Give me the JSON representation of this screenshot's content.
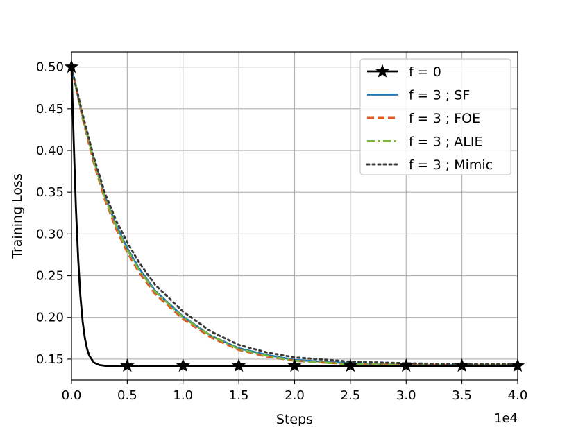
{
  "chart_data": {
    "type": "line",
    "title": "",
    "xlabel": "Steps",
    "ylabel": "Training Loss",
    "x_offset_label": "1e4",
    "xlim": [
      0,
      4.0
    ],
    "ylim": [
      0.125,
      0.518
    ],
    "x_ticks": [
      "0.0",
      "0.5",
      "1.0",
      "1.5",
      "2.0",
      "2.5",
      "3.0",
      "3.5",
      "4.0"
    ],
    "y_ticks": [
      "0.15",
      "0.20",
      "0.25",
      "0.30",
      "0.35",
      "0.40",
      "0.45",
      "0.50"
    ],
    "grid": true,
    "legend_position": "top-right",
    "series": [
      {
        "name": "f = 0",
        "color": "#000000",
        "style": "solid-star",
        "x": [
          0,
          0.02,
          0.04,
          0.06,
          0.08,
          0.1,
          0.12,
          0.14,
          0.16,
          0.2,
          0.25,
          0.3,
          0.5,
          1.0,
          1.5,
          2.0,
          2.5,
          3.0,
          3.5,
          4.0
        ],
        "y": [
          0.5,
          0.41,
          0.33,
          0.27,
          0.225,
          0.195,
          0.175,
          0.162,
          0.154,
          0.146,
          0.143,
          0.142,
          0.142,
          0.142,
          0.142,
          0.142,
          0.142,
          0.142,
          0.142,
          0.142
        ],
        "markers_x": [
          0,
          0.5,
          1.0,
          1.5,
          2.0,
          2.5,
          3.0,
          3.5,
          4.0
        ],
        "markers_y": [
          0.5,
          0.142,
          0.142,
          0.142,
          0.142,
          0.142,
          0.142,
          0.142,
          0.142
        ]
      },
      {
        "name": "f = 3 ; SF",
        "color": "#1f77b4",
        "style": "solid",
        "x": [
          0,
          0.1,
          0.2,
          0.3,
          0.4,
          0.5,
          0.6,
          0.75,
          1.0,
          1.25,
          1.5,
          1.75,
          2.0,
          2.5,
          3.0,
          3.5,
          4.0
        ],
        "y": [
          0.5,
          0.44,
          0.389,
          0.345,
          0.311,
          0.283,
          0.26,
          0.232,
          0.201,
          0.178,
          0.163,
          0.155,
          0.149,
          0.145,
          0.143,
          0.143,
          0.143
        ],
        "markers_x": [],
        "markers_y": []
      },
      {
        "name": "f = 3 ; FOE",
        "color": "#e05a1f",
        "style": "dashed",
        "x": [
          0,
          0.1,
          0.2,
          0.3,
          0.4,
          0.5,
          0.6,
          0.75,
          1.0,
          1.25,
          1.5,
          1.75,
          2.0,
          2.5,
          3.0,
          3.5,
          4.0
        ],
        "y": [
          0.5,
          0.438,
          0.385,
          0.341,
          0.306,
          0.278,
          0.255,
          0.228,
          0.198,
          0.176,
          0.161,
          0.153,
          0.148,
          0.144,
          0.143,
          0.143,
          0.143
        ],
        "markers_x": [],
        "markers_y": []
      },
      {
        "name": "f = 3 ; ALIE",
        "color": "#7cb342",
        "style": "dashdot",
        "x": [
          0,
          0.1,
          0.2,
          0.3,
          0.4,
          0.5,
          0.6,
          0.75,
          1.0,
          1.25,
          1.5,
          1.75,
          2.0,
          2.5,
          3.0,
          3.5,
          4.0
        ],
        "y": [
          0.5,
          0.44,
          0.388,
          0.344,
          0.309,
          0.281,
          0.258,
          0.231,
          0.2,
          0.178,
          0.162,
          0.154,
          0.148,
          0.144,
          0.143,
          0.143,
          0.143
        ],
        "markers_x": [],
        "markers_y": []
      },
      {
        "name": "f = 3 ; Mimic",
        "color": "#3a3a3a",
        "style": "dotted",
        "x": [
          0,
          0.1,
          0.2,
          0.3,
          0.4,
          0.5,
          0.6,
          0.75,
          1.0,
          1.25,
          1.5,
          1.75,
          2.0,
          2.5,
          3.0,
          3.5,
          4.0
        ],
        "y": [
          0.5,
          0.443,
          0.392,
          0.349,
          0.316,
          0.29,
          0.267,
          0.239,
          0.207,
          0.183,
          0.167,
          0.158,
          0.152,
          0.147,
          0.145,
          0.144,
          0.144
        ],
        "markers_x": [],
        "markers_y": []
      }
    ]
  }
}
